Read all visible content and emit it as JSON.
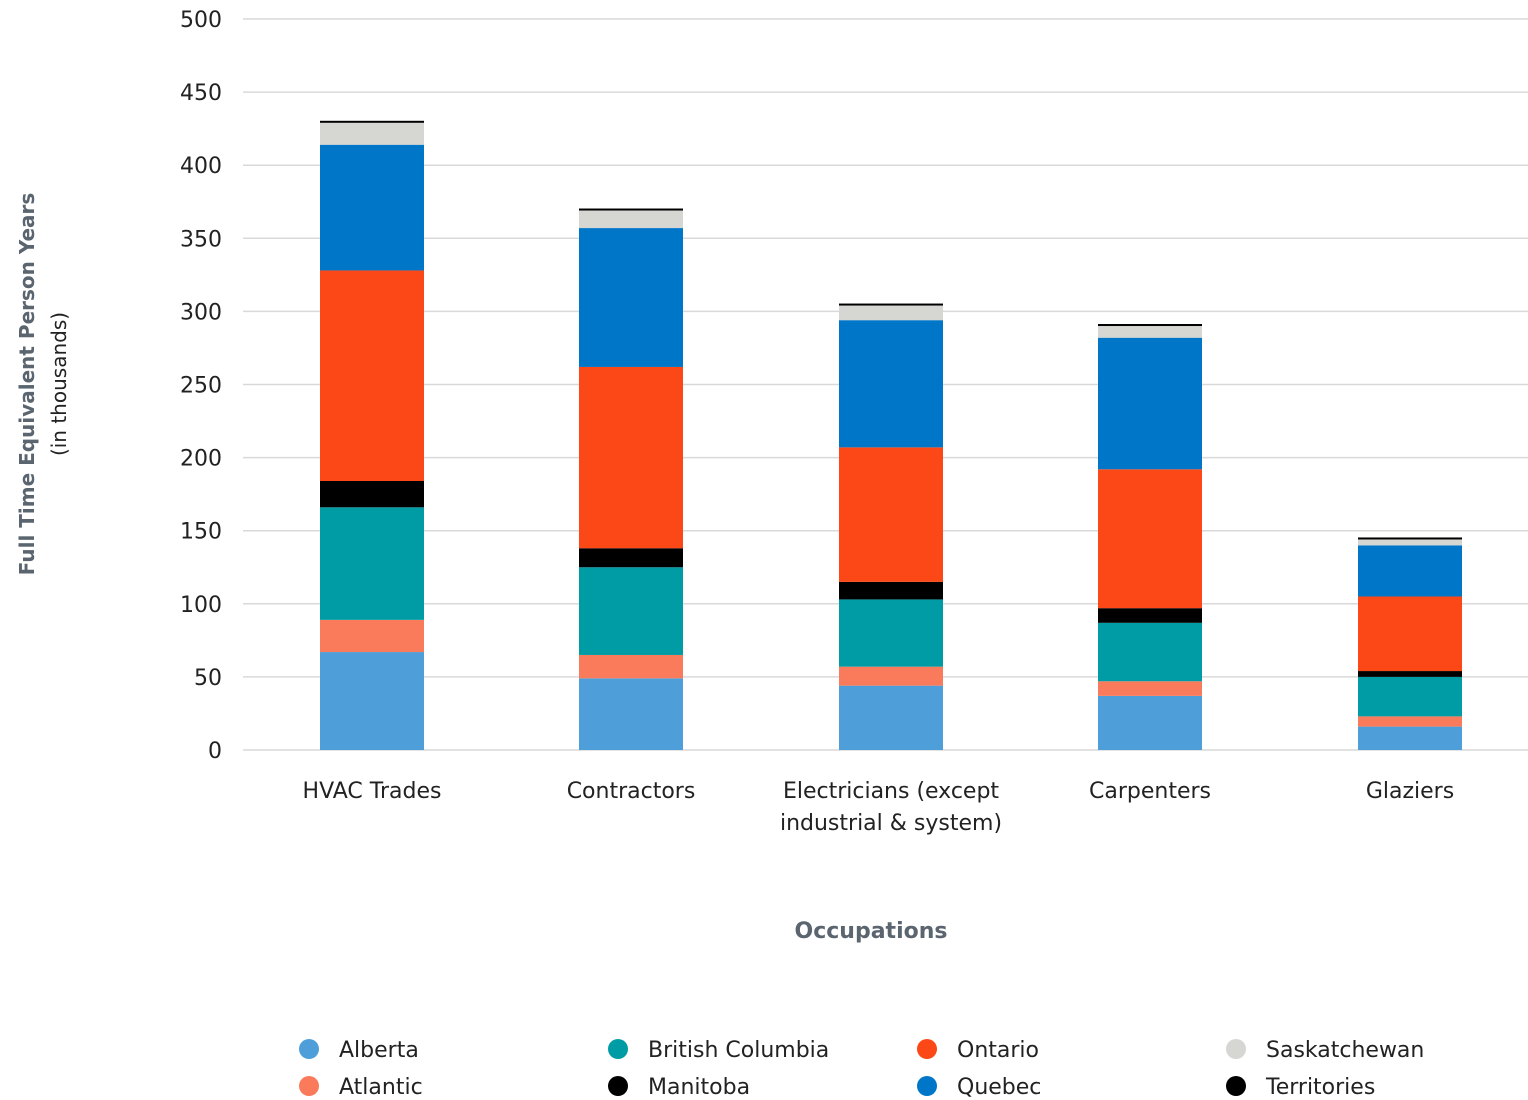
{
  "chart_data": {
    "type": "bar",
    "stacked": true,
    "title": "",
    "ylabel": "Full Time Equivalent Person Years",
    "ylabel_sub": "(in thousands)",
    "xlabel": "Occupations",
    "ylim": [
      0,
      500
    ],
    "yticks": [
      0,
      50,
      100,
      150,
      200,
      250,
      300,
      350,
      400,
      450,
      500
    ],
    "grid": true,
    "legend_position": "bottom",
    "categories": [
      [
        "HVAC Trades"
      ],
      [
        "Contractors"
      ],
      [
        "Electricians (except",
        "industrial & system)"
      ],
      [
        "Carpenters"
      ],
      [
        "Glaziers"
      ]
    ],
    "series": [
      {
        "name": "Alberta",
        "color": "#4e9fd9",
        "values": [
          67,
          49,
          44,
          37,
          16
        ]
      },
      {
        "name": "Atlantic",
        "color": "#fa7b5b",
        "values": [
          22,
          16,
          13,
          10,
          7
        ]
      },
      {
        "name": "British Columbia",
        "color": "#009ca6",
        "values": [
          77,
          60,
          46,
          40,
          27
        ]
      },
      {
        "name": "Manitoba",
        "color": "#000000",
        "values": [
          18,
          13,
          12,
          10,
          4
        ]
      },
      {
        "name": "Ontario",
        "color": "#fc4717",
        "values": [
          144,
          124,
          92,
          95,
          51
        ]
      },
      {
        "name": "Quebec",
        "color": "#0076c8",
        "values": [
          86,
          95,
          87,
          90,
          35
        ]
      },
      {
        "name": "Saskatchewan",
        "color": "#d6d6d2",
        "values": [
          15,
          12,
          10,
          8,
          4
        ]
      },
      {
        "name": "Territories",
        "color": "#000000",
        "values": [
          1,
          1,
          1,
          1,
          1
        ]
      }
    ]
  }
}
